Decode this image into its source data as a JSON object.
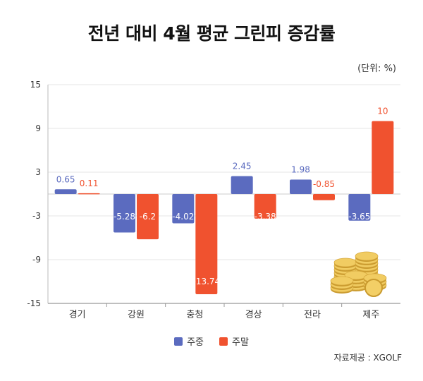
{
  "chart_data": {
    "type": "bar",
    "title": "전년 대비 4월 평균 그린피 증감률",
    "unit_label": "(단위: %)",
    "categories": [
      "경기",
      "강원",
      "충청",
      "경상",
      "전라",
      "제주"
    ],
    "series": [
      {
        "name": "주중",
        "color": "#5b6bbf",
        "values": [
          0.65,
          -5.28,
          -4.02,
          2.45,
          1.98,
          -3.65
        ],
        "labels": [
          "0.65",
          "-5.28",
          "-4.02",
          "2.45",
          "1.98",
          "-3.65"
        ]
      },
      {
        "name": "주말",
        "color": "#f0522f",
        "values": [
          0.11,
          -6.2,
          -13.74,
          -3.38,
          -0.85,
          10
        ],
        "labels": [
          "0.11",
          "-6.2",
          "-13.74",
          "-3.38",
          "-0.85",
          "10"
        ]
      }
    ],
    "yticks": [
      15,
      9,
      3,
      -3,
      -9,
      -15
    ],
    "ylim": [
      -15,
      15
    ],
    "grid": true,
    "legend": "bottom-center",
    "source": "자료제공 : XGOLF"
  }
}
